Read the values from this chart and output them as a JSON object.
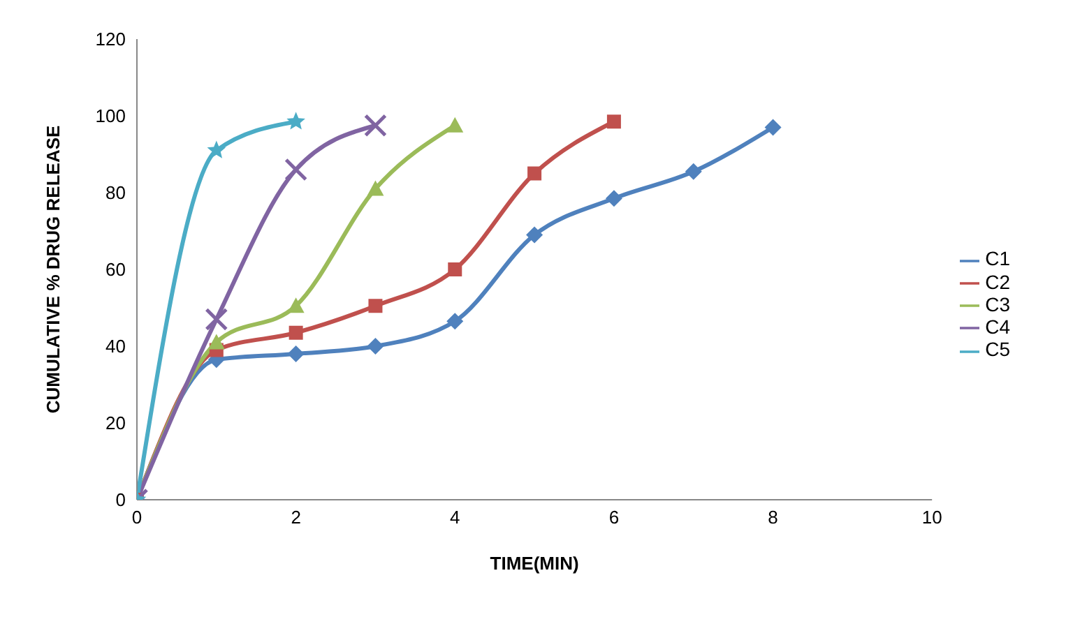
{
  "chart_data": {
    "type": "line",
    "xlabel": "TIME(MIN)",
    "ylabel": "CUMULATIVE % DRUG RELEASE",
    "xlim": [
      0,
      10
    ],
    "xticks": [
      0,
      2,
      4,
      6,
      8,
      10
    ],
    "ylim": [
      0,
      120
    ],
    "yticks": [
      0,
      20,
      40,
      60,
      80,
      100,
      120
    ],
    "grid": false,
    "legend": "right",
    "line_style": "solid",
    "series": [
      {
        "name": "C1",
        "color": "#4f81bd",
        "marker": "diamond",
        "x": [
          0,
          1,
          2,
          3,
          4,
          5,
          6,
          7,
          8
        ],
        "values": [
          0,
          36.5,
          38,
          40,
          46.5,
          69,
          78.5,
          85.5,
          97
        ]
      },
      {
        "name": "C2",
        "color": "#c0504d",
        "marker": "square",
        "x": [
          0,
          1,
          2,
          3,
          4,
          5,
          6
        ],
        "values": [
          0,
          39,
          43.5,
          50.5,
          60,
          85,
          98.5
        ]
      },
      {
        "name": "C3",
        "color": "#9bbb59",
        "marker": "triangle",
        "x": [
          0,
          1,
          2,
          3,
          4
        ],
        "values": [
          0,
          41,
          50.5,
          81,
          97.5
        ]
      },
      {
        "name": "C4",
        "color": "#8064a2",
        "marker": "cross",
        "x": [
          0,
          1,
          2,
          3
        ],
        "values": [
          0,
          47,
          86,
          97.5
        ]
      },
      {
        "name": "C5",
        "color": "#4bacc6",
        "marker": "star",
        "x": [
          0,
          1,
          2
        ],
        "values": [
          0,
          91,
          98.5
        ]
      }
    ]
  }
}
